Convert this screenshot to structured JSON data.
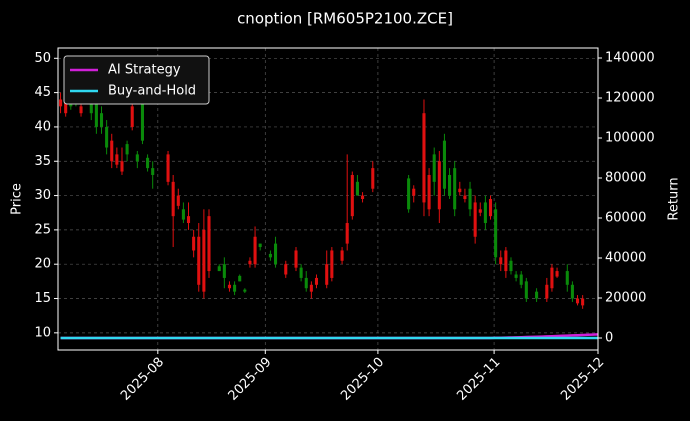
{
  "chart_data": {
    "type": "candlestick",
    "title": "cnoption [RM605P2100.ZCE]",
    "y_label": "Price",
    "y2_label": "Return",
    "categories": [
      null,
      null,
      null,
      null,
      null,
      null,
      null,
      null,
      null,
      null,
      null,
      null,
      null,
      null,
      null,
      null,
      null,
      null,
      null,
      null,
      null,
      null,
      null,
      null,
      null,
      null,
      null,
      null,
      null,
      null,
      null,
      null,
      null,
      null,
      null,
      null,
      null,
      null,
      null,
      null,
      null,
      null,
      null,
      null,
      null,
      null,
      null,
      null,
      null,
      null,
      null,
      null,
      null,
      null,
      null,
      null,
      null,
      null,
      null,
      null,
      null,
      null,
      null,
      null,
      null,
      null,
      null,
      null,
      null,
      null,
      null,
      null,
      null,
      null,
      null,
      null,
      null,
      null,
      null,
      null,
      null,
      null,
      null,
      null,
      null,
      null,
      null,
      null,
      null,
      null,
      null,
      null,
      null,
      null,
      null,
      null,
      null,
      null,
      null,
      null,
      null,
      null,
      null,
      null,
      null,
      null
    ],
    "open": [
      44,
      43.5,
      43,
      44,
      43,
      null,
      42,
      40,
      40,
      37,
      38,
      36,
      35,
      36,
      43,
      35,
      38,
      34,
      33,
      null,
      null,
      36,
      32,
      30,
      26.5,
      27,
      24,
      24,
      25,
      27,
      null,
      19,
      18,
      17,
      16,
      17.5,
      16,
      20.5,
      24,
      22.5,
      null,
      21,
      20,
      null,
      20,
      null,
      22,
      18,
      16.5,
      17,
      18,
      null,
      20,
      22,
      null,
      22,
      26,
      33,
      30,
      30,
      null,
      34,
      null,
      null,
      null,
      null,
      null,
      null,
      28,
      31,
      null,
      42,
      33,
      32,
      35,
      31,
      30,
      28,
      31,
      30,
      28,
      29,
      28,
      26,
      29.5,
      21,
      21,
      22,
      19,
      18,
      17,
      15,
      null,
      15,
      null,
      17,
      19.5,
      19,
      null,
      17,
      15,
      15,
      15,
      null,
      null,
      null
    ],
    "high": [
      45,
      44,
      45,
      46,
      44,
      null,
      45,
      45,
      43,
      41,
      39,
      37,
      37,
      38,
      43.5,
      36.5,
      45,
      36,
      35,
      null,
      null,
      36.5,
      33,
      31,
      29,
      29,
      25,
      26,
      28,
      28,
      null,
      20,
      21,
      17.5,
      17.5,
      18.5,
      16.5,
      21,
      25.5,
      23,
      null,
      22,
      24,
      null,
      20.5,
      null,
      22.5,
      20,
      19,
      17.5,
      18.5,
      null,
      22,
      22.5,
      null,
      22.5,
      36,
      33.5,
      33,
      30.5,
      null,
      35,
      null,
      null,
      null,
      null,
      null,
      null,
      33,
      31.5,
      null,
      44,
      34,
      37,
      36.5,
      39,
      34,
      35,
      32,
      31,
      32,
      30,
      29,
      30,
      30,
      29,
      22,
      22.5,
      21,
      19,
      19,
      18,
      null,
      16.5,
      null,
      18,
      20,
      19.5,
      null,
      20,
      17.5,
      15.5,
      15.5,
      null,
      null,
      null
    ],
    "low": [
      42,
      41.5,
      42.5,
      43,
      41.5,
      null,
      41,
      39,
      39,
      36,
      34,
      34,
      33,
      35,
      39.5,
      34,
      37.5,
      33.5,
      31,
      null,
      null,
      31.5,
      22.5,
      28,
      26,
      25,
      21,
      16,
      15,
      18,
      null,
      19,
      16.5,
      16,
      15.5,
      17.5,
      15.8,
      19.5,
      19.5,
      22,
      null,
      20.5,
      19.5,
      null,
      18,
      null,
      19,
      17.5,
      16,
      15,
      16.5,
      null,
      16.5,
      17.5,
      null,
      20,
      22,
      26.5,
      30,
      29,
      null,
      30.5,
      null,
      null,
      null,
      null,
      null,
      null,
      27.5,
      29,
      null,
      27,
      27,
      30,
      26,
      30,
      29.5,
      27,
      30,
      29,
      27,
      23,
      27,
      25,
      26.5,
      20,
      19,
      18,
      18.5,
      17.5,
      16.5,
      14.5,
      null,
      14.5,
      null,
      14.5,
      16,
      18,
      null,
      16,
      14.5,
      14,
      13.5,
      null,
      null,
      null
    ],
    "close": [
      43,
      42,
      44,
      45,
      42,
      null,
      44.5,
      44,
      42,
      40,
      35,
      34.5,
      33.5,
      37.5,
      40,
      36,
      44,
      35.5,
      34,
      null,
      null,
      32,
      27,
      28.5,
      28,
      26,
      22,
      17,
      16,
      19,
      null,
      19.7,
      20,
      16.5,
      17,
      18.3,
      16.3,
      20,
      20,
      23,
      null,
      21.5,
      23,
      null,
      18.5,
      null,
      19.5,
      19.5,
      18,
      16,
      17,
      null,
      17,
      18,
      null,
      20.5,
      23,
      27,
      32,
      29.5,
      null,
      31,
      null,
      null,
      null,
      null,
      null,
      null,
      32.5,
      30,
      null,
      29,
      28,
      36,
      28,
      38,
      33,
      34,
      30.5,
      29.5,
      31,
      24,
      27.5,
      29,
      27,
      28,
      20,
      19,
      20.5,
      18.5,
      18.5,
      17.5,
      null,
      16,
      null,
      15,
      16.5,
      18.2,
      null,
      19,
      17,
      14.3,
      14,
      null,
      null,
      null
    ],
    "up_color": "#0a8a0a",
    "down_color": "#e01010",
    "series": [
      {
        "name": "AI Strategy",
        "color": "#d020d8",
        "axis": "y2",
        "values": [
          0,
          0,
          0,
          0,
          0,
          0,
          0,
          0,
          0,
          0,
          0,
          0,
          0,
          0,
          0,
          0,
          0,
          0,
          0,
          0,
          0,
          0,
          0,
          0,
          0,
          0,
          0,
          0,
          0,
          0,
          0,
          0,
          0,
          0,
          0,
          0,
          0,
          0,
          0,
          0,
          0,
          0,
          0,
          0,
          0,
          0,
          0,
          0,
          0,
          0,
          0,
          0,
          0,
          0,
          0,
          0,
          0,
          0,
          0,
          0,
          0,
          0,
          0,
          0,
          0,
          0,
          0,
          0,
          0,
          0,
          0,
          0,
          0,
          0,
          0,
          0,
          0,
          0,
          0,
          0,
          0,
          0,
          0,
          0,
          0,
          100,
          150,
          200,
          250,
          300,
          400,
          500,
          550,
          600,
          700,
          800,
          900,
          1000,
          1100,
          1200,
          1300,
          1400,
          1500,
          1600,
          1700,
          1800
        ]
      },
      {
        "name": "Buy-and-Hold",
        "color": "#30d8f0",
        "axis": "y2",
        "values": [
          0,
          0,
          0,
          0,
          0,
          0,
          0,
          0,
          0,
          0,
          0,
          0,
          0,
          0,
          0,
          0,
          0,
          0,
          0,
          0,
          0,
          0,
          0,
          0,
          0,
          0,
          0,
          0,
          0,
          0,
          0,
          0,
          0,
          0,
          0,
          0,
          0,
          0,
          0,
          0,
          0,
          0,
          0,
          0,
          0,
          0,
          0,
          0,
          0,
          0,
          0,
          0,
          0,
          0,
          0,
          0,
          0,
          0,
          0,
          0,
          0,
          0,
          0,
          0,
          0,
          0,
          0,
          0,
          0,
          0,
          0,
          0,
          0,
          0,
          0,
          0,
          0,
          0,
          0,
          0,
          0,
          0,
          0,
          0,
          0,
          0,
          0,
          0,
          0,
          0,
          0,
          0,
          0,
          0,
          0,
          0,
          0,
          0,
          0,
          0,
          0,
          0,
          0,
          0,
          0,
          0
        ]
      }
    ],
    "xlim": [
      -0.5,
      105
    ],
    "xticks": [
      {
        "value": 19,
        "label": "2025-08"
      },
      {
        "value": 40,
        "label": "2025-09"
      },
      {
        "value": 62,
        "label": "2025-10"
      },
      {
        "value": 84.7,
        "label": "2025-11"
      },
      {
        "value": 105,
        "label": "2025-12"
      }
    ],
    "ylim": [
      7.5,
      51.5
    ],
    "yticks": [
      10,
      15,
      20,
      25,
      30,
      35,
      40,
      45,
      50
    ],
    "y2lim": [
      -6000,
      145000
    ],
    "y2ticks": [
      0,
      20000,
      40000,
      60000,
      80000,
      100000,
      120000,
      140000
    ],
    "grid": true,
    "legend": "upper left"
  }
}
